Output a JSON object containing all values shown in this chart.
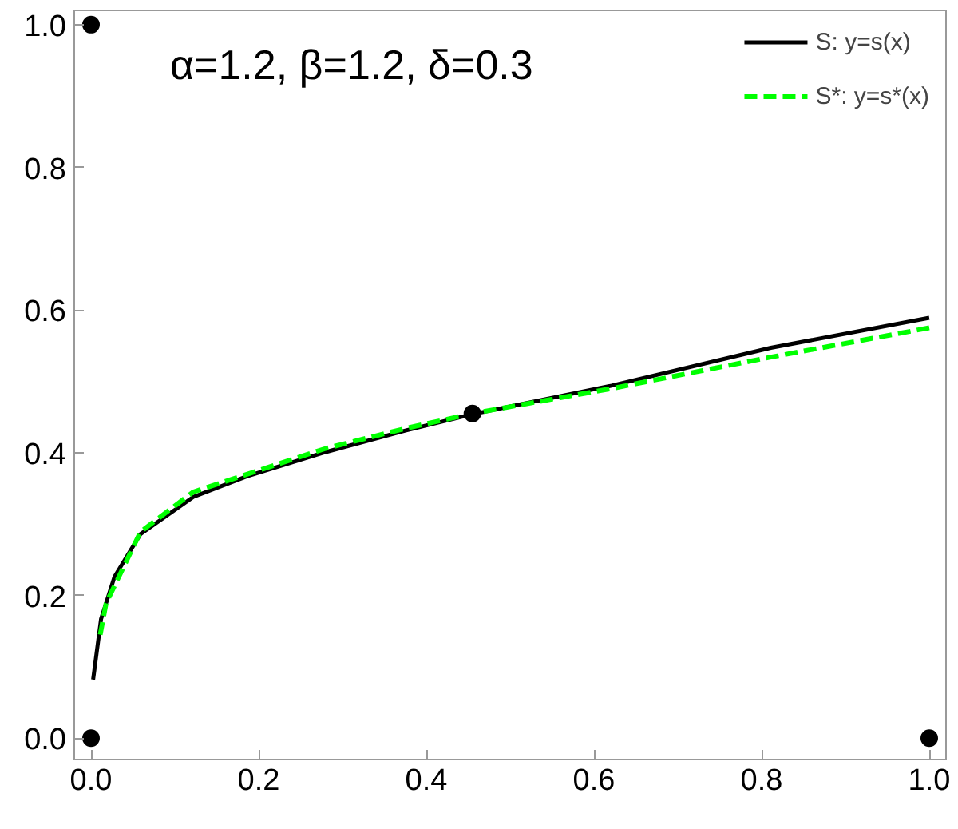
{
  "chart_data": {
    "type": "line",
    "annotations": [
      "α=1.2, β=1.2, δ=0.3"
    ],
    "xlim": [
      -0.02,
      1.02
    ],
    "ylim": [
      -0.03,
      1.02
    ],
    "xticks": [
      {
        "value": 0,
        "label": "0.0"
      },
      0.2,
      0.4,
      0.6,
      0.8,
      {
        "value": 1,
        "label": "1.0"
      }
    ],
    "yticks": [
      {
        "value": 0,
        "label": "0.0"
      },
      0.2,
      0.4,
      0.6,
      0.8,
      {
        "value": 1,
        "label": "1.0"
      }
    ],
    "legend": "top right",
    "grid": false,
    "series": [
      {
        "name": "S: y=s(x)",
        "color": "#000000",
        "line_style": "solid",
        "x": [
          0.0025,
          0.012,
          0.028,
          0.059,
          0.122,
          0.186,
          0.28,
          0.375,
          0.455,
          0.621,
          0.811,
          1.0
        ],
        "values": [
          0.082,
          0.167,
          0.226,
          0.286,
          0.338,
          0.367,
          0.401,
          0.431,
          0.454,
          0.494,
          0.547,
          0.589
        ]
      },
      {
        "name": "S*: y=s*(x)",
        "color": "#00ff00",
        "line_style": "dashed",
        "x": [
          0.011,
          0.018,
          0.059,
          0.122,
          0.28,
          0.375,
          0.455,
          0.621,
          0.811,
          1.0
        ],
        "values": [
          0.145,
          0.189,
          0.289,
          0.345,
          0.406,
          0.434,
          0.455,
          0.49,
          0.534,
          0.575
        ]
      },
      {
        "type": "scatter",
        "marker": "circle",
        "color": "#000000",
        "x": [
          0,
          0,
          1,
          0.455
        ],
        "values": [
          0,
          1,
          0,
          0.455
        ]
      }
    ]
  }
}
